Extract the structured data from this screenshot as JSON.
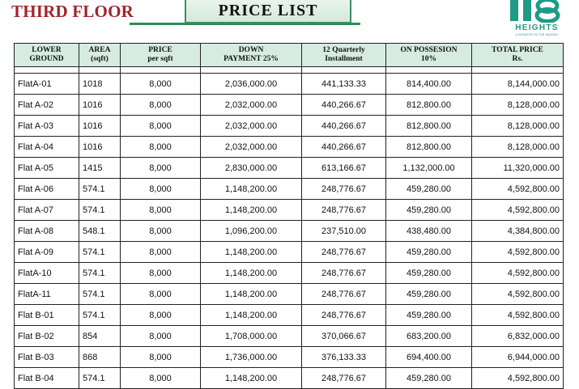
{
  "header": {
    "floor_title": "THIRD FLOOR",
    "price_list_title": "PRICE  LIST"
  },
  "logo": {
    "mark": "18",
    "word": "HEIGHTS",
    "tagline": "A WONDER IN THE MAKING",
    "icon": "b18-heights-logo",
    "color": "#1f9a86"
  },
  "colors": {
    "title_red": "#a0262a",
    "header_green": "#d6ece0",
    "banner_green": "#3a8f62"
  },
  "table": {
    "headers": [
      [
        "LOWER",
        "GROUND"
      ],
      [
        "AREA",
        "(sqft)"
      ],
      [
        "PRICE",
        "per sqft"
      ],
      [
        "DOWN",
        "PAYMENT 25%"
      ],
      [
        "12 Quarterly",
        "Installment"
      ],
      [
        "ON POSSESION",
        "10%"
      ],
      [
        "TOTAL PRICE",
        "Rs."
      ]
    ],
    "rows": [
      [
        "FlatA-01",
        "1018",
        "8,000",
        "2,036,000.00",
        "441,133.33",
        "814,400.00",
        "8,144,000.00"
      ],
      [
        "Flat A-02",
        "1016",
        "8,000",
        "2,032,000.00",
        "440,266.67",
        "812,800.00",
        "8,128,000.00"
      ],
      [
        "Flat A-03",
        "1016",
        "8,000",
        "2,032,000.00",
        "440,266.67",
        "812,800.00",
        "8,128,000.00"
      ],
      [
        "Flat A-04",
        "1016",
        "8,000",
        "2,032,000.00",
        "440,266.67",
        "812,800.00",
        "8,128,000.00"
      ],
      [
        "Flat A-05",
        "1415",
        "8,000",
        "2,830,000.00",
        "613,166.67",
        "1,132,000.00",
        "11,320,000.00"
      ],
      [
        "Flat A-06",
        "574.1",
        "8,000",
        "1,148,200.00",
        "248,776.67",
        "459,280.00",
        "4,592,800.00"
      ],
      [
        "Flat A-07",
        "574.1",
        "8,000",
        "1,148,200.00",
        "248,776.67",
        "459,280.00",
        "4,592,800.00"
      ],
      [
        "Flat A-08",
        "548.1",
        "8,000",
        "1,096,200.00",
        "237,510.00",
        "438,480.00",
        "4,384,800.00"
      ],
      [
        "Flat A-09",
        "574.1",
        "8,000",
        "1,148,200.00",
        "248,776.67",
        "459,280.00",
        "4,592,800.00"
      ],
      [
        "FlatA-10",
        "574.1",
        "8,000",
        "1,148,200.00",
        "248,776.67",
        "459,280.00",
        "4,592,800.00"
      ],
      [
        "FlatA-11",
        "574.1",
        "8,000",
        "1,148,200.00",
        "248,776.67",
        "459,280.00",
        "4,592,800.00"
      ],
      [
        "Flat B-01",
        "574.1",
        "8,000",
        "1,148,200.00",
        "248,776.67",
        "459,280.00",
        "4,592,800.00"
      ],
      [
        "Flat B-02",
        "854",
        "8,000",
        "1,708,000.00",
        "370,066.67",
        "683,200.00",
        "6,832,000.00"
      ],
      [
        "Flat B-03",
        "868",
        "8,000",
        "1,736,000.00",
        "376,133.33",
        "694,400.00",
        "6,944,000.00"
      ],
      [
        "Flat B-04",
        "574.1",
        "8,000",
        "1,148,200.00",
        "248,776.67",
        "459,280.00",
        "4,592,800.00"
      ]
    ]
  }
}
